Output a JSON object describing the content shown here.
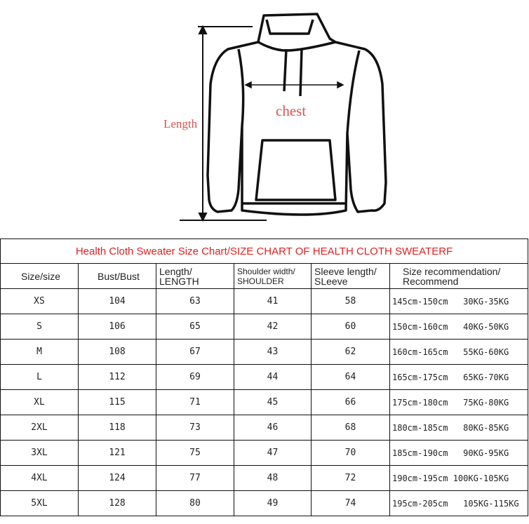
{
  "figure": {
    "length_label": "Length",
    "chest_label": "chest"
  },
  "table": {
    "title": "Health Cloth Sweater Size Chart/SIZE CHART OF HEALTH CLOTH SWEATERF",
    "headers": [
      {
        "line1": "Size/size",
        "line2": ""
      },
      {
        "line1": "Bust/Bust",
        "line2": ""
      },
      {
        "line1": "Length/",
        "line2": "LENGTH"
      },
      {
        "line1": "Shoulder width/",
        "line2": "SHOULDER"
      },
      {
        "line1": "Sleeve length/",
        "line2": "SLeeve"
      },
      {
        "line1": "Size recommendation/",
        "line2": "Recommend"
      }
    ],
    "rows": [
      [
        "XS",
        "104",
        "63",
        "41",
        "58",
        "145cm-150cm   30KG-35KG"
      ],
      [
        "S",
        "106",
        "65",
        "42",
        "60",
        "150cm-160cm   40KG-50KG"
      ],
      [
        "M",
        "108",
        "67",
        "43",
        "62",
        "160cm-165cm   55KG-60KG"
      ],
      [
        "L",
        "112",
        "69",
        "44",
        "64",
        "165cm-175cm   65KG-70KG"
      ],
      [
        "XL",
        "115",
        "71",
        "45",
        "66",
        "175cm-180cm   75KG-80KG"
      ],
      [
        "2XL",
        "118",
        "73",
        "46",
        "68",
        "180cm-185cm   80KG-85KG"
      ],
      [
        "3XL",
        "121",
        "75",
        "47",
        "70",
        "185cm-190cm   90KG-95KG"
      ],
      [
        "4XL",
        "124",
        "77",
        "48",
        "72",
        "190cm-195cm 100KG-105KG"
      ],
      [
        "5XL",
        "128",
        "80",
        "49",
        "74",
        "195cm-205cm   105KG-115KG"
      ]
    ]
  }
}
